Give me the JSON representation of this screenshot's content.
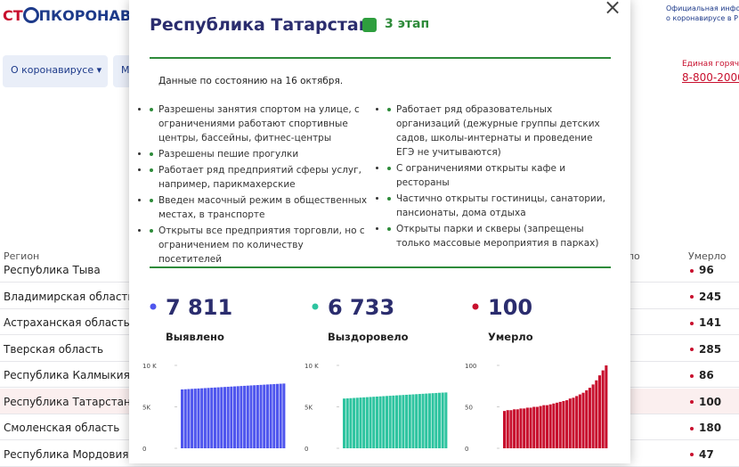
{
  "header": {
    "logo_left": "СТ",
    "logo_right": "ПКОРОНАВИ",
    "info_line1": "Официальная инфо",
    "info_line2": "о коронавирусе в Р",
    "hotline_title": "Единая горяча",
    "hotline_phone": "8-800-2000"
  },
  "nav": [
    "О коронавирусе",
    "М"
  ],
  "table": {
    "columns": [
      "Регион",
      "ло",
      "Умерло"
    ],
    "rows": [
      [
        "Республика Тыва",
        "96"
      ],
      [
        "Владимирская область",
        "245"
      ],
      [
        "Астраханская область",
        "141"
      ],
      [
        "Тверская область",
        "285"
      ],
      [
        "Республика Калмыкия",
        "86"
      ],
      [
        "Республика Татарстан",
        "100"
      ],
      [
        "Смоленская область",
        "180"
      ],
      [
        "Республика Мордовия",
        "47"
      ]
    ]
  },
  "modal": {
    "title": "Республика Татарстан",
    "stage": "3 этап",
    "close": "×",
    "date": "Данные по состоянию на 16 октября.",
    "left_list": [
      "Разрешены занятия спортом на улице, с ограничениями работают спортивные центры, бассейны, фитнес-центры",
      "Разрешены пешие прогулки",
      "Работает ряд предприятий сферы услуг, например, парикмахерские",
      "Введен масочный режим в общественных местах, в транспорте",
      "Открыты все предприятия торговли, но с ограничением по количеству посетителей"
    ],
    "right_list": [
      "Работает ряд образовательных организаций (дежурные группы детских садов, школы-интернаты и проведение ЕГЭ не учитываются)",
      "С ограничениями открыты кафе и рестораны",
      "Частично открыты гостиницы, санатории, пансионаты, дома отдыха",
      "Открыты парки и скверы (запрещены только массовые мероприятия в парках)"
    ],
    "stats": [
      {
        "value": "7 811",
        "label": "Выявлено",
        "color": "#4f56ee",
        "ylim": [
          0,
          10000
        ],
        "yticks": [
          {
            "value": 10000,
            "label": "10 K"
          },
          {
            "value": 5000,
            "label": "5K"
          },
          0
        ],
        "values": [
          7100,
          7123,
          7146,
          7169,
          7192,
          7215,
          7238,
          7261,
          7284,
          7307,
          7330,
          7353,
          7376,
          7399,
          7422,
          7445,
          7468,
          7491,
          7514,
          7537,
          7560,
          7583,
          7606,
          7629,
          7652,
          7675,
          7698,
          7721,
          7744,
          7767,
          7790,
          7811
        ]
      },
      {
        "value": "6 733",
        "label": "Выздоровело",
        "color": "#2ec4a0",
        "ylim": [
          0,
          10000
        ],
        "yticks": [
          {
            "value": 10000,
            "label": "10 K"
          },
          {
            "value": 5000,
            "label": "5K"
          },
          0
        ],
        "values": [
          6000,
          6024,
          6048,
          6072,
          6096,
          6120,
          6144,
          6168,
          6192,
          6216,
          6240,
          6264,
          6288,
          6312,
          6336,
          6360,
          6384,
          6408,
          6432,
          6456,
          6480,
          6504,
          6528,
          6552,
          6576,
          6600,
          6624,
          6648,
          6672,
          6696,
          6716,
          6733
        ]
      },
      {
        "value": "100",
        "label": "Умерло",
        "color": "#c8102e",
        "ylim": [
          0,
          100
        ],
        "yticks": [
          100,
          50,
          0
        ],
        "values": [
          45,
          46,
          46,
          47,
          47,
          48,
          48,
          49,
          49,
          50,
          50,
          51,
          52,
          52,
          53,
          54,
          55,
          56,
          57,
          58,
          60,
          61,
          63,
          65,
          67,
          70,
          73,
          77,
          82,
          88,
          94,
          100
        ]
      }
    ]
  }
}
